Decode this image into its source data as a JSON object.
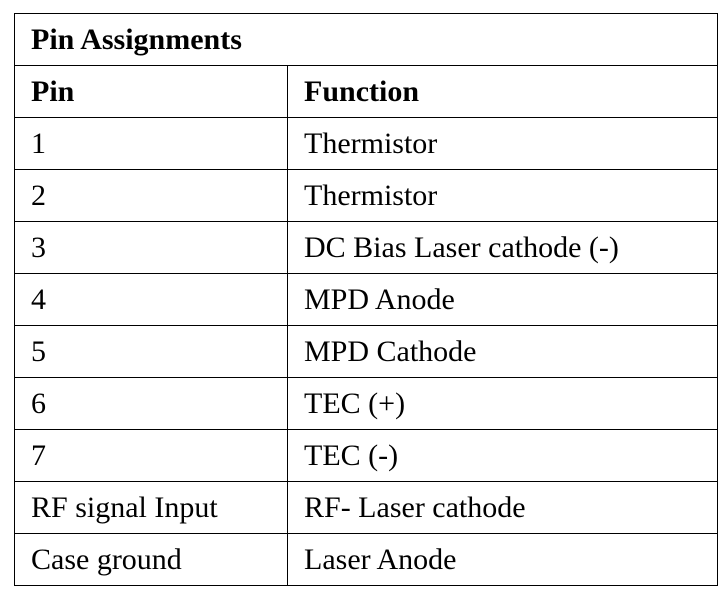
{
  "table": {
    "title": "Pin Assignments",
    "headers": {
      "pin": "Pin",
      "function": "Function"
    },
    "rows": [
      {
        "pin": "1",
        "function": "Thermistor"
      },
      {
        "pin": "2",
        "function": "Thermistor"
      },
      {
        "pin": "3",
        "function": "DC Bias Laser cathode (-)"
      },
      {
        "pin": "4",
        "function": "MPD Anode"
      },
      {
        "pin": "5",
        "function": "MPD Cathode"
      },
      {
        "pin": "6",
        "function": "TEC (+)"
      },
      {
        "pin": "7",
        "function": "TEC (-)"
      },
      {
        "pin": "RF signal Input",
        "function": "RF- Laser cathode"
      },
      {
        "pin": "Case ground",
        "function": "Laser Anode"
      }
    ]
  }
}
